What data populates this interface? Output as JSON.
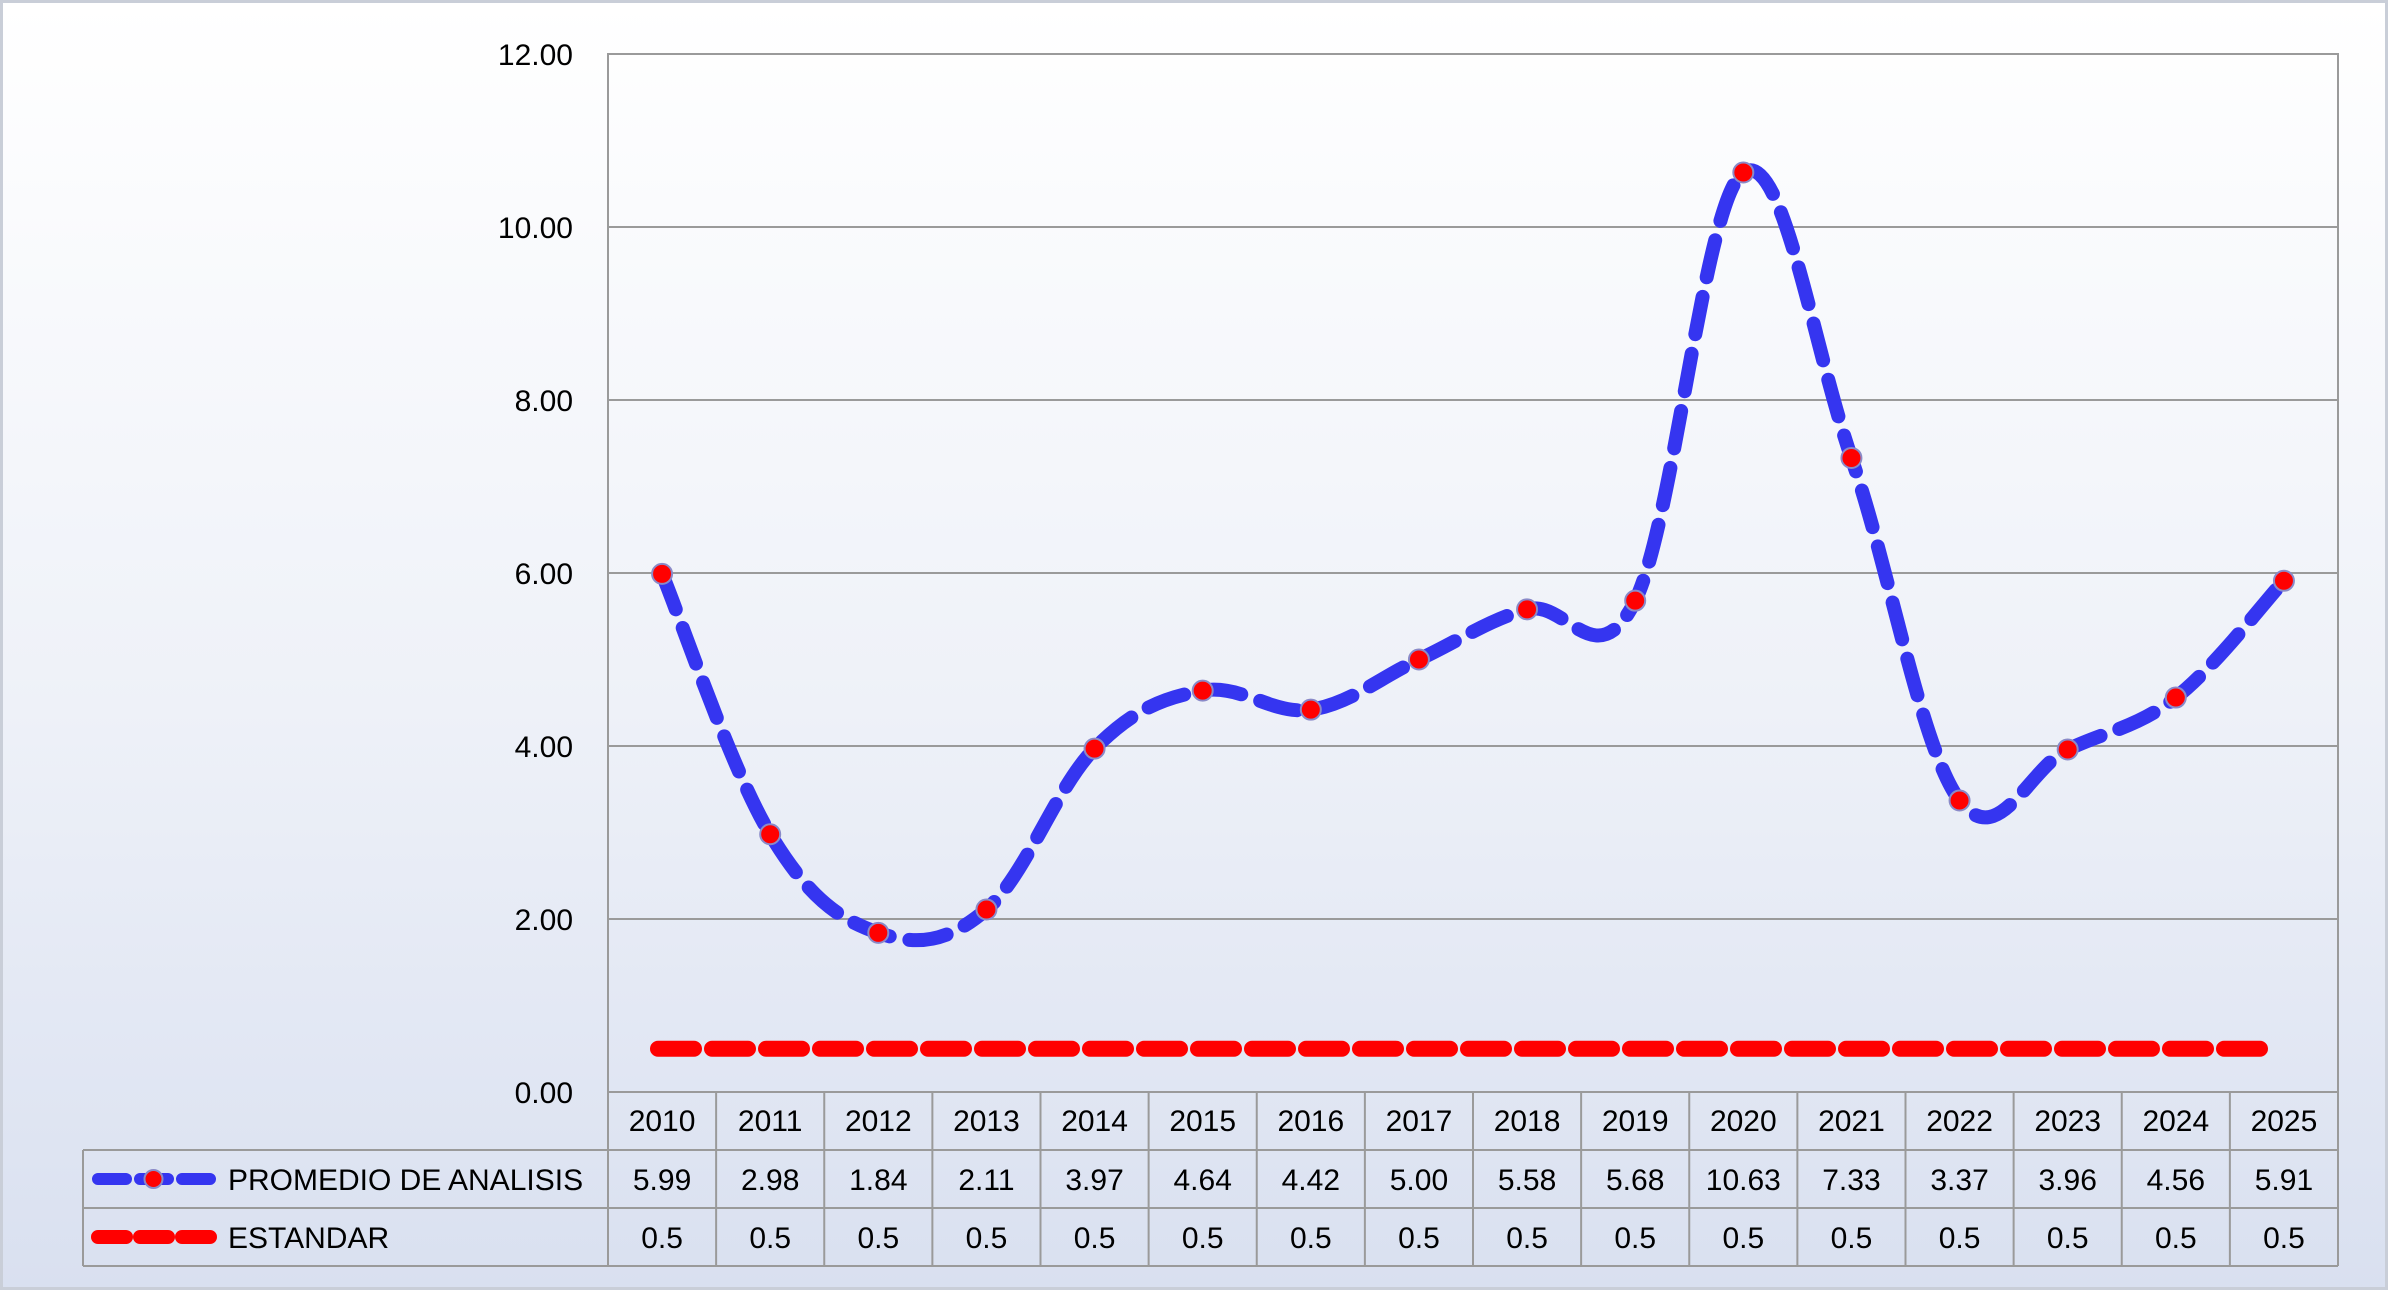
{
  "chart_data": {
    "type": "line",
    "title": "",
    "xlabel": "",
    "ylabel": "",
    "ylim": [
      0,
      12
    ],
    "yticks": [
      "0.00",
      "2.00",
      "4.00",
      "6.00",
      "8.00",
      "10.00",
      "12.00"
    ],
    "categories": [
      "2010",
      "2011",
      "2012",
      "2013",
      "2014",
      "2015",
      "2016",
      "2017",
      "2018",
      "2019",
      "2020",
      "2021",
      "2022",
      "2023",
      "2024",
      "2025"
    ],
    "grid": true,
    "legend": "data-table",
    "series": [
      {
        "name": "PROMEDIO DE ANALISIS",
        "values": [
          5.99,
          2.98,
          1.84,
          2.11,
          3.97,
          4.64,
          4.42,
          5.0,
          5.58,
          5.68,
          10.63,
          7.33,
          3.37,
          3.96,
          4.56,
          5.91
        ],
        "labels": [
          "5.99",
          "2.98",
          "1.84",
          "2.11",
          "3.97",
          "4.64",
          "4.42",
          "5.00",
          "5.58",
          "5.68",
          "10.63",
          "7.33",
          "3.37",
          "3.96",
          "4.56",
          "5.91"
        ],
        "line_color": "#3535f0",
        "marker_color": "#ff0000",
        "markers": true
      },
      {
        "name": "ESTANDAR",
        "values": [
          0.5,
          0.5,
          0.5,
          0.5,
          0.5,
          0.5,
          0.5,
          0.5,
          0.5,
          0.5,
          0.5,
          0.5,
          0.5,
          0.5,
          0.5,
          0.5
        ],
        "labels": [
          "0.5",
          "0.5",
          "0.5",
          "0.5",
          "0.5",
          "0.5",
          "0.5",
          "0.5",
          "0.5",
          "0.5",
          "0.5",
          "0.5",
          "0.5",
          "0.5",
          "0.5",
          "0.5"
        ],
        "line_color": "#ff0000",
        "marker_color": "#ff0000",
        "markers": false
      }
    ]
  }
}
